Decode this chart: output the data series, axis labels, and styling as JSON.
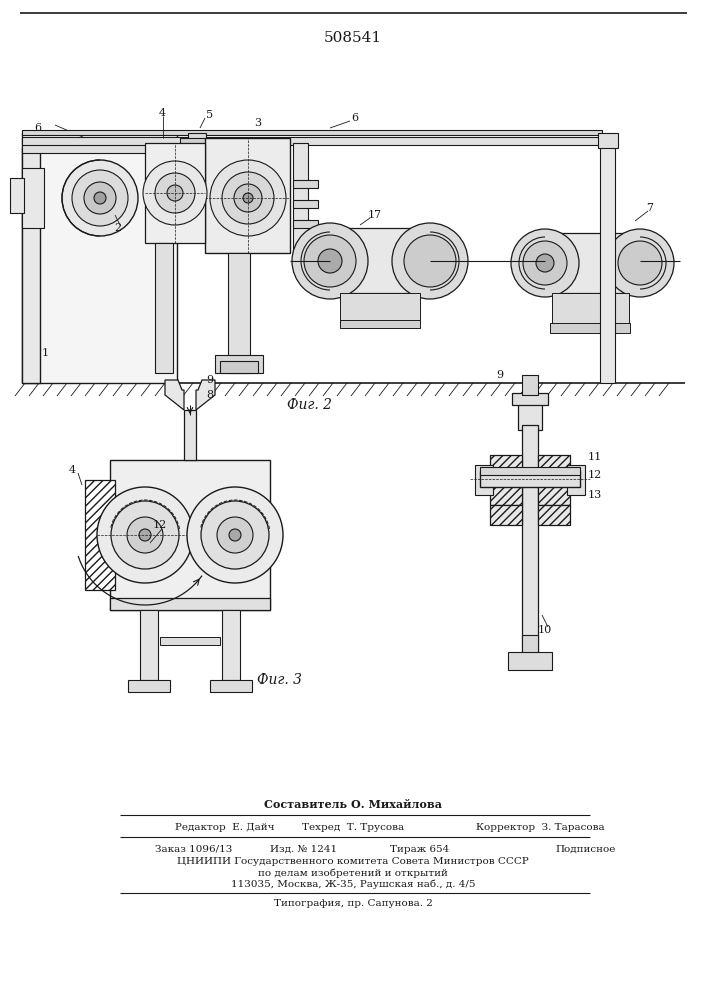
{
  "patent_number": "508541",
  "fig2_label": "Фиг. 2",
  "fig3_label": "Фиг. 3",
  "bg_color": "#ffffff",
  "lc": "#1a1a1a",
  "footer": [
    "Составитель О. Михайлова",
    "Редактор  Е. Дайч",
    "Техред  Т. Трусова",
    "Корректор  З. Тарасова",
    "Заказ 1096/13",
    "Изд. № 1241",
    "Тираж 654",
    "Подписное",
    "ЦНИИПИ Государственного комитета Совета Министров СССР",
    "по делам изобретений и открытий",
    "113035, Москва, Ж-35, Раушская наб., д. 4/5",
    "Типография, пр. Сапунова. 2"
  ]
}
